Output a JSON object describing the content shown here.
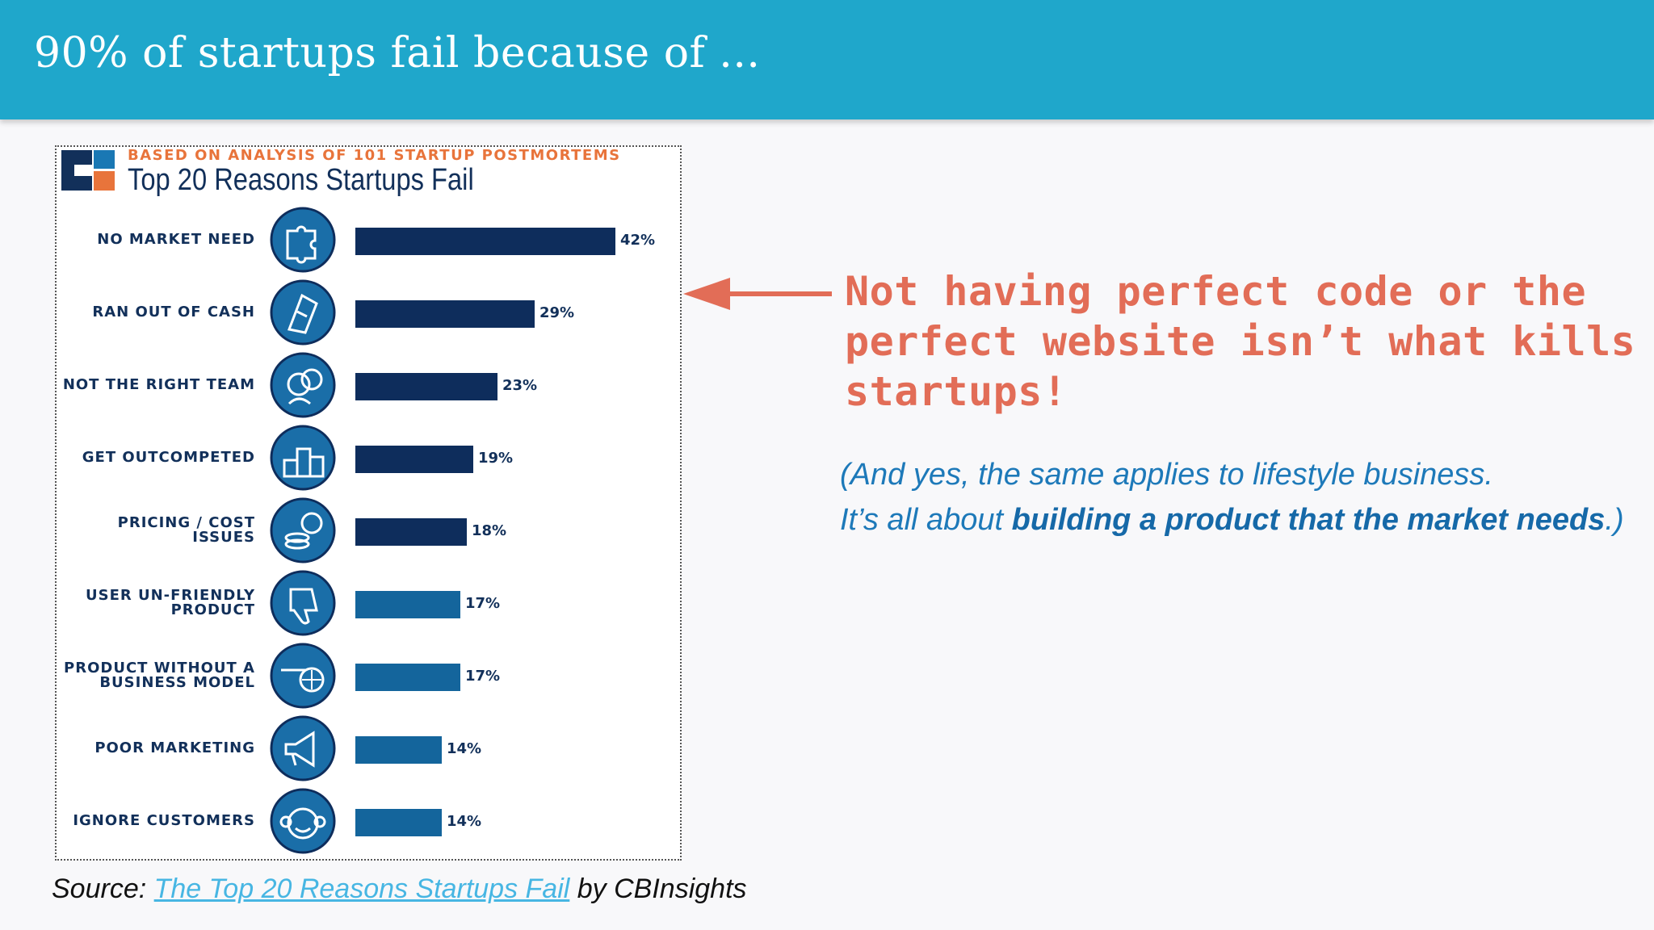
{
  "header": {
    "title": "90% of startups fail because of ..."
  },
  "infographic": {
    "subtitle": "BASED ON ANALYSIS OF 101 STARTUP POSTMORTEMS",
    "title": "Top 20 Reasons Startups Fail",
    "colors": {
      "dark": "#0e2d5c",
      "mid": "#14659c",
      "accent": "#e8743b",
      "logo_blue": "#0c5f94"
    }
  },
  "chart_data": {
    "type": "bar",
    "orientation": "horizontal",
    "title": "Top 20 Reasons Startups Fail",
    "subtitle": "BASED ON ANALYSIS OF 101 STARTUP POSTMORTEMS",
    "categories": [
      "NO MARKET NEED",
      "RAN OUT OF CASH",
      "NOT THE RIGHT TEAM",
      "GET OUTCOMPETED",
      "PRICING / COST ISSUES",
      "USER UN-FRIENDLY\nPRODUCT",
      "PRODUCT WITHOUT A\nBUSINESS MODEL",
      "POOR MARKETING",
      "IGNORE CUSTOMERS"
    ],
    "values": [
      42,
      29,
      23,
      19,
      18,
      17,
      17,
      14,
      14
    ],
    "value_labels": [
      "42%",
      "29%",
      "23%",
      "19%",
      "18%",
      "17%",
      "17%",
      "14%",
      "14%"
    ],
    "bar_colors": [
      "#0e2d5c",
      "#0e2d5c",
      "#0e2d5c",
      "#0e2d5c",
      "#0e2d5c",
      "#14659c",
      "#14659c",
      "#14659c",
      "#14659c"
    ],
    "icons": [
      "puzzle-icon",
      "money-icon",
      "team-icon",
      "podium-icon",
      "coins-icon",
      "thumbs-down-icon",
      "cart-icon",
      "megaphone-icon",
      "monkey-icon"
    ],
    "xlim": [
      0,
      45
    ],
    "grid": false
  },
  "callout": {
    "text": "Not having perfect code or the perfect website isn’t what kills startups!",
    "color": "#e26d57"
  },
  "note": {
    "line1": "(And yes, the same applies to lifestyle business.",
    "line2_start": "It’s all about ",
    "line2_bold": "building a product that the market needs",
    "line2_end": ".)"
  },
  "source": {
    "prefix": "Source: ",
    "link_text": "The Top 20 Reasons Startups Fail",
    "suffix": " by CBInsights"
  }
}
